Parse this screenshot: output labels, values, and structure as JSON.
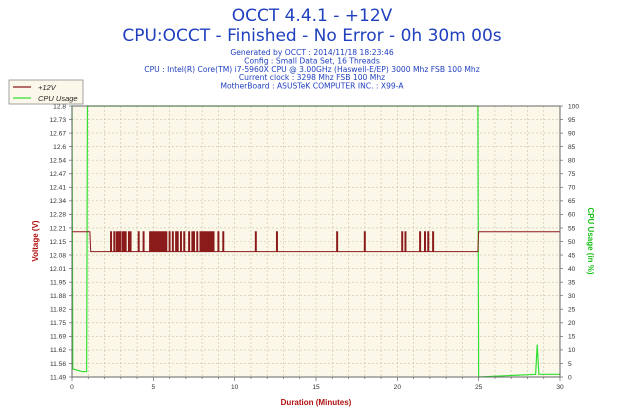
{
  "header": {
    "title": "OCCT 4.4.1 - +12V",
    "subtitle": "CPU:OCCT - Finished - No Error - 0h 30m 00s",
    "info_lines": [
      "Generated by OCCT : 2014/11/18 18:23:46",
      "Config : Small Data Set, 16 Threads",
      "CPU : Intel(R) Core(TM) i7-5960X CPU @ 3.00GHz (Haswell-E/EP) 3000 Mhz FSB 100 Mhz",
      "Current clock : 3298 Mhz FSB 100 Mhz",
      "MotherBoard : ASUSTeK COMPUTER INC. : X99-A"
    ]
  },
  "colors": {
    "voltage": "#8b1a1a",
    "cpu": "#33e033",
    "plot_bg": "#fbf8ea",
    "grid": "#c9c1a6",
    "legend_bg": "#fbf8ea"
  },
  "chart_data": {
    "type": "line",
    "xlabel": "Duration (Minutes)",
    "ylabel": "Voltage (V)",
    "y2label": "CPU Usage (in %)",
    "xlim": [
      0,
      30
    ],
    "ylim": [
      11.49,
      12.8
    ],
    "y2lim": [
      0,
      100
    ],
    "x_ticks": [
      0,
      5,
      10,
      15,
      20,
      25,
      30
    ],
    "y_ticks": [
      "11.49",
      "11.56",
      "11.62",
      "11.69",
      "11.75",
      "11.82",
      "11.88",
      "11.95",
      "12.01",
      "12.08",
      "12.15",
      "12.21",
      "12.28",
      "12.34",
      "12.41",
      "12.47",
      "12.54",
      "12.6",
      "12.67",
      "12.73",
      "12.8"
    ],
    "y2_ticks": [
      0,
      5,
      10,
      15,
      20,
      25,
      30,
      35,
      40,
      45,
      50,
      55,
      60,
      65,
      70,
      75,
      80,
      85,
      90,
      95,
      100
    ],
    "grid": true,
    "legend_position": "top-left",
    "series": [
      {
        "name": "+12V",
        "axis": "left",
        "baseline": 12.096,
        "spike_value": 12.192,
        "start": [
          [
            0,
            12.192
          ],
          [
            1.1,
            12.192
          ],
          [
            1.15,
            12.096
          ]
        ],
        "end": [
          [
            24.95,
            12.096
          ],
          [
            25,
            12.192
          ],
          [
            30,
            12.192
          ]
        ],
        "spikes": [
          2.4,
          2.6,
          2.75,
          2.85,
          2.95,
          3.1,
          3.2,
          3.3,
          3.5,
          3.6,
          4.1,
          4.4,
          4.8,
          4.9,
          5.0,
          5.1,
          5.2,
          5.3,
          5.4,
          5.5,
          5.6,
          5.7,
          5.8,
          6.0,
          6.2,
          6.4,
          6.5,
          6.7,
          6.9,
          7.2,
          7.4,
          7.5,
          7.7,
          7.9,
          8.0,
          8.1,
          8.2,
          8.3,
          8.4,
          8.5,
          8.6,
          8.7,
          9.0,
          9.3,
          11.3,
          12.6,
          16.3,
          18.0,
          20.3,
          20.5,
          21.4,
          21.7,
          21.9,
          22.2
        ]
      },
      {
        "name": "CPU Usage",
        "axis": "right",
        "points": [
          [
            0,
            100
          ],
          [
            0.05,
            3
          ],
          [
            0.6,
            2
          ],
          [
            0.9,
            2
          ],
          [
            0.95,
            100
          ],
          [
            24.95,
            100
          ],
          [
            25.0,
            0
          ],
          [
            28.5,
            1
          ],
          [
            28.6,
            12
          ],
          [
            28.7,
            1
          ],
          [
            30,
            1
          ]
        ]
      }
    ]
  }
}
